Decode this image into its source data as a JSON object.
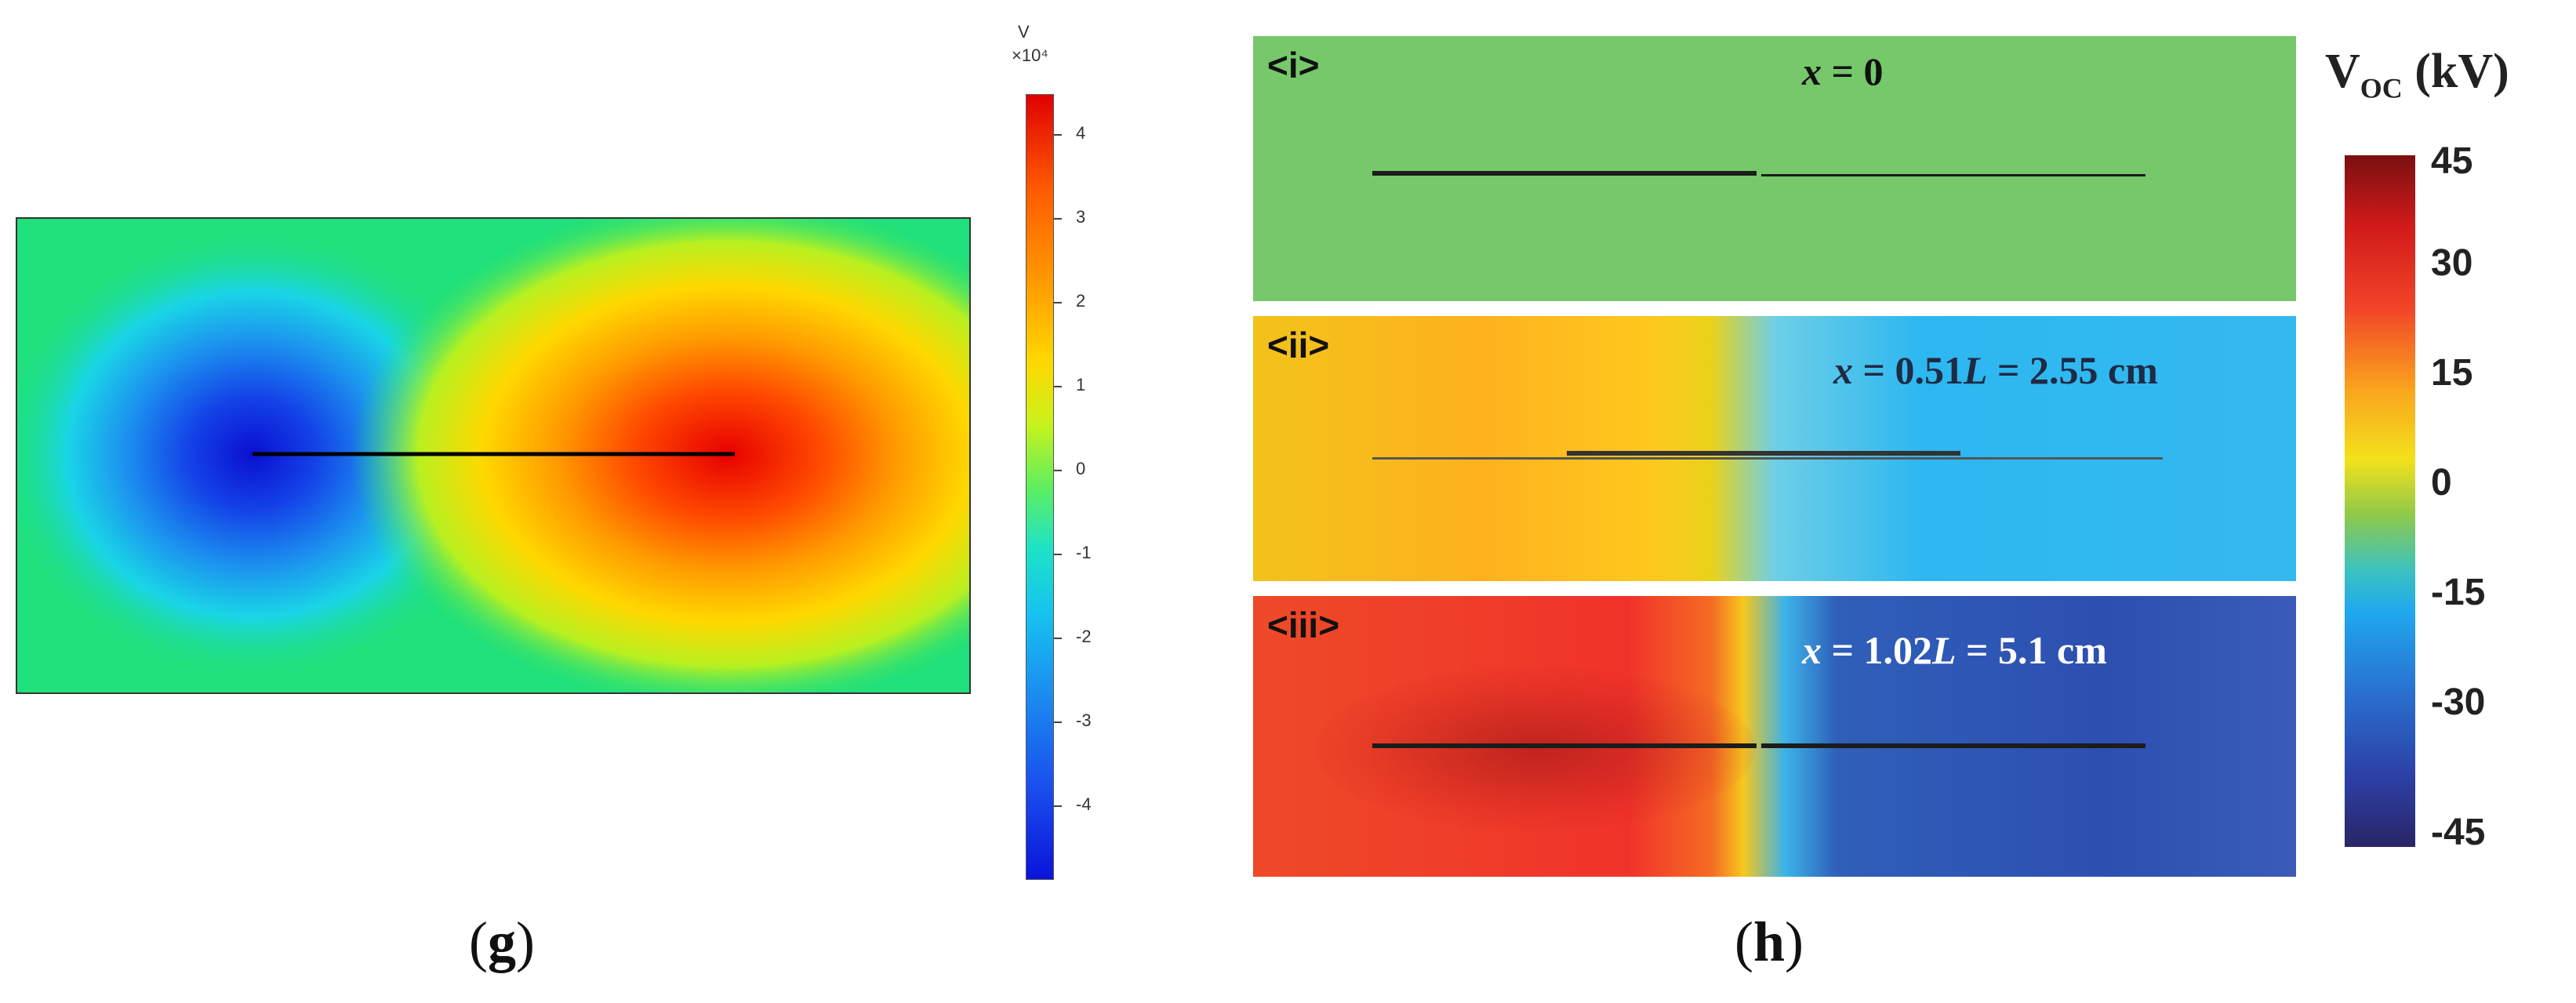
{
  "panel_g": {
    "colorbar": {
      "unit": "V",
      "scale": "×10⁴",
      "ticks": [
        "4",
        "3",
        "2",
        "1",
        "0",
        "-1",
        "-2",
        "-3",
        "-4"
      ]
    },
    "caption": {
      "open": "(",
      "letter": "g",
      "close": ")"
    }
  },
  "panel_h": {
    "panels": [
      {
        "tag": "<i>",
        "label_x": "x",
        "label_rest": " = 0"
      },
      {
        "tag": "<ii>",
        "label_x": "x",
        "label_rest": " = 0.51",
        "label_L": "L",
        "label_tail": " = 2.55 cm"
      },
      {
        "tag": "<iii>",
        "label_x": "x",
        "label_rest": " = 1.02",
        "label_L": "L",
        "label_tail": " = 5.1 cm"
      }
    ],
    "colorbar": {
      "title_main": "V",
      "title_sub": "OC",
      "title_unit": " (kV)",
      "ticks": [
        "45",
        "30",
        "15",
        "0",
        "-15",
        "-30",
        "-45"
      ]
    },
    "caption": {
      "open": "(",
      "letter": "h",
      "close": ")"
    }
  },
  "colors": {
    "positive": "#e00000",
    "negative": "#0b14d9",
    "neutral": "#1fe07a"
  }
}
